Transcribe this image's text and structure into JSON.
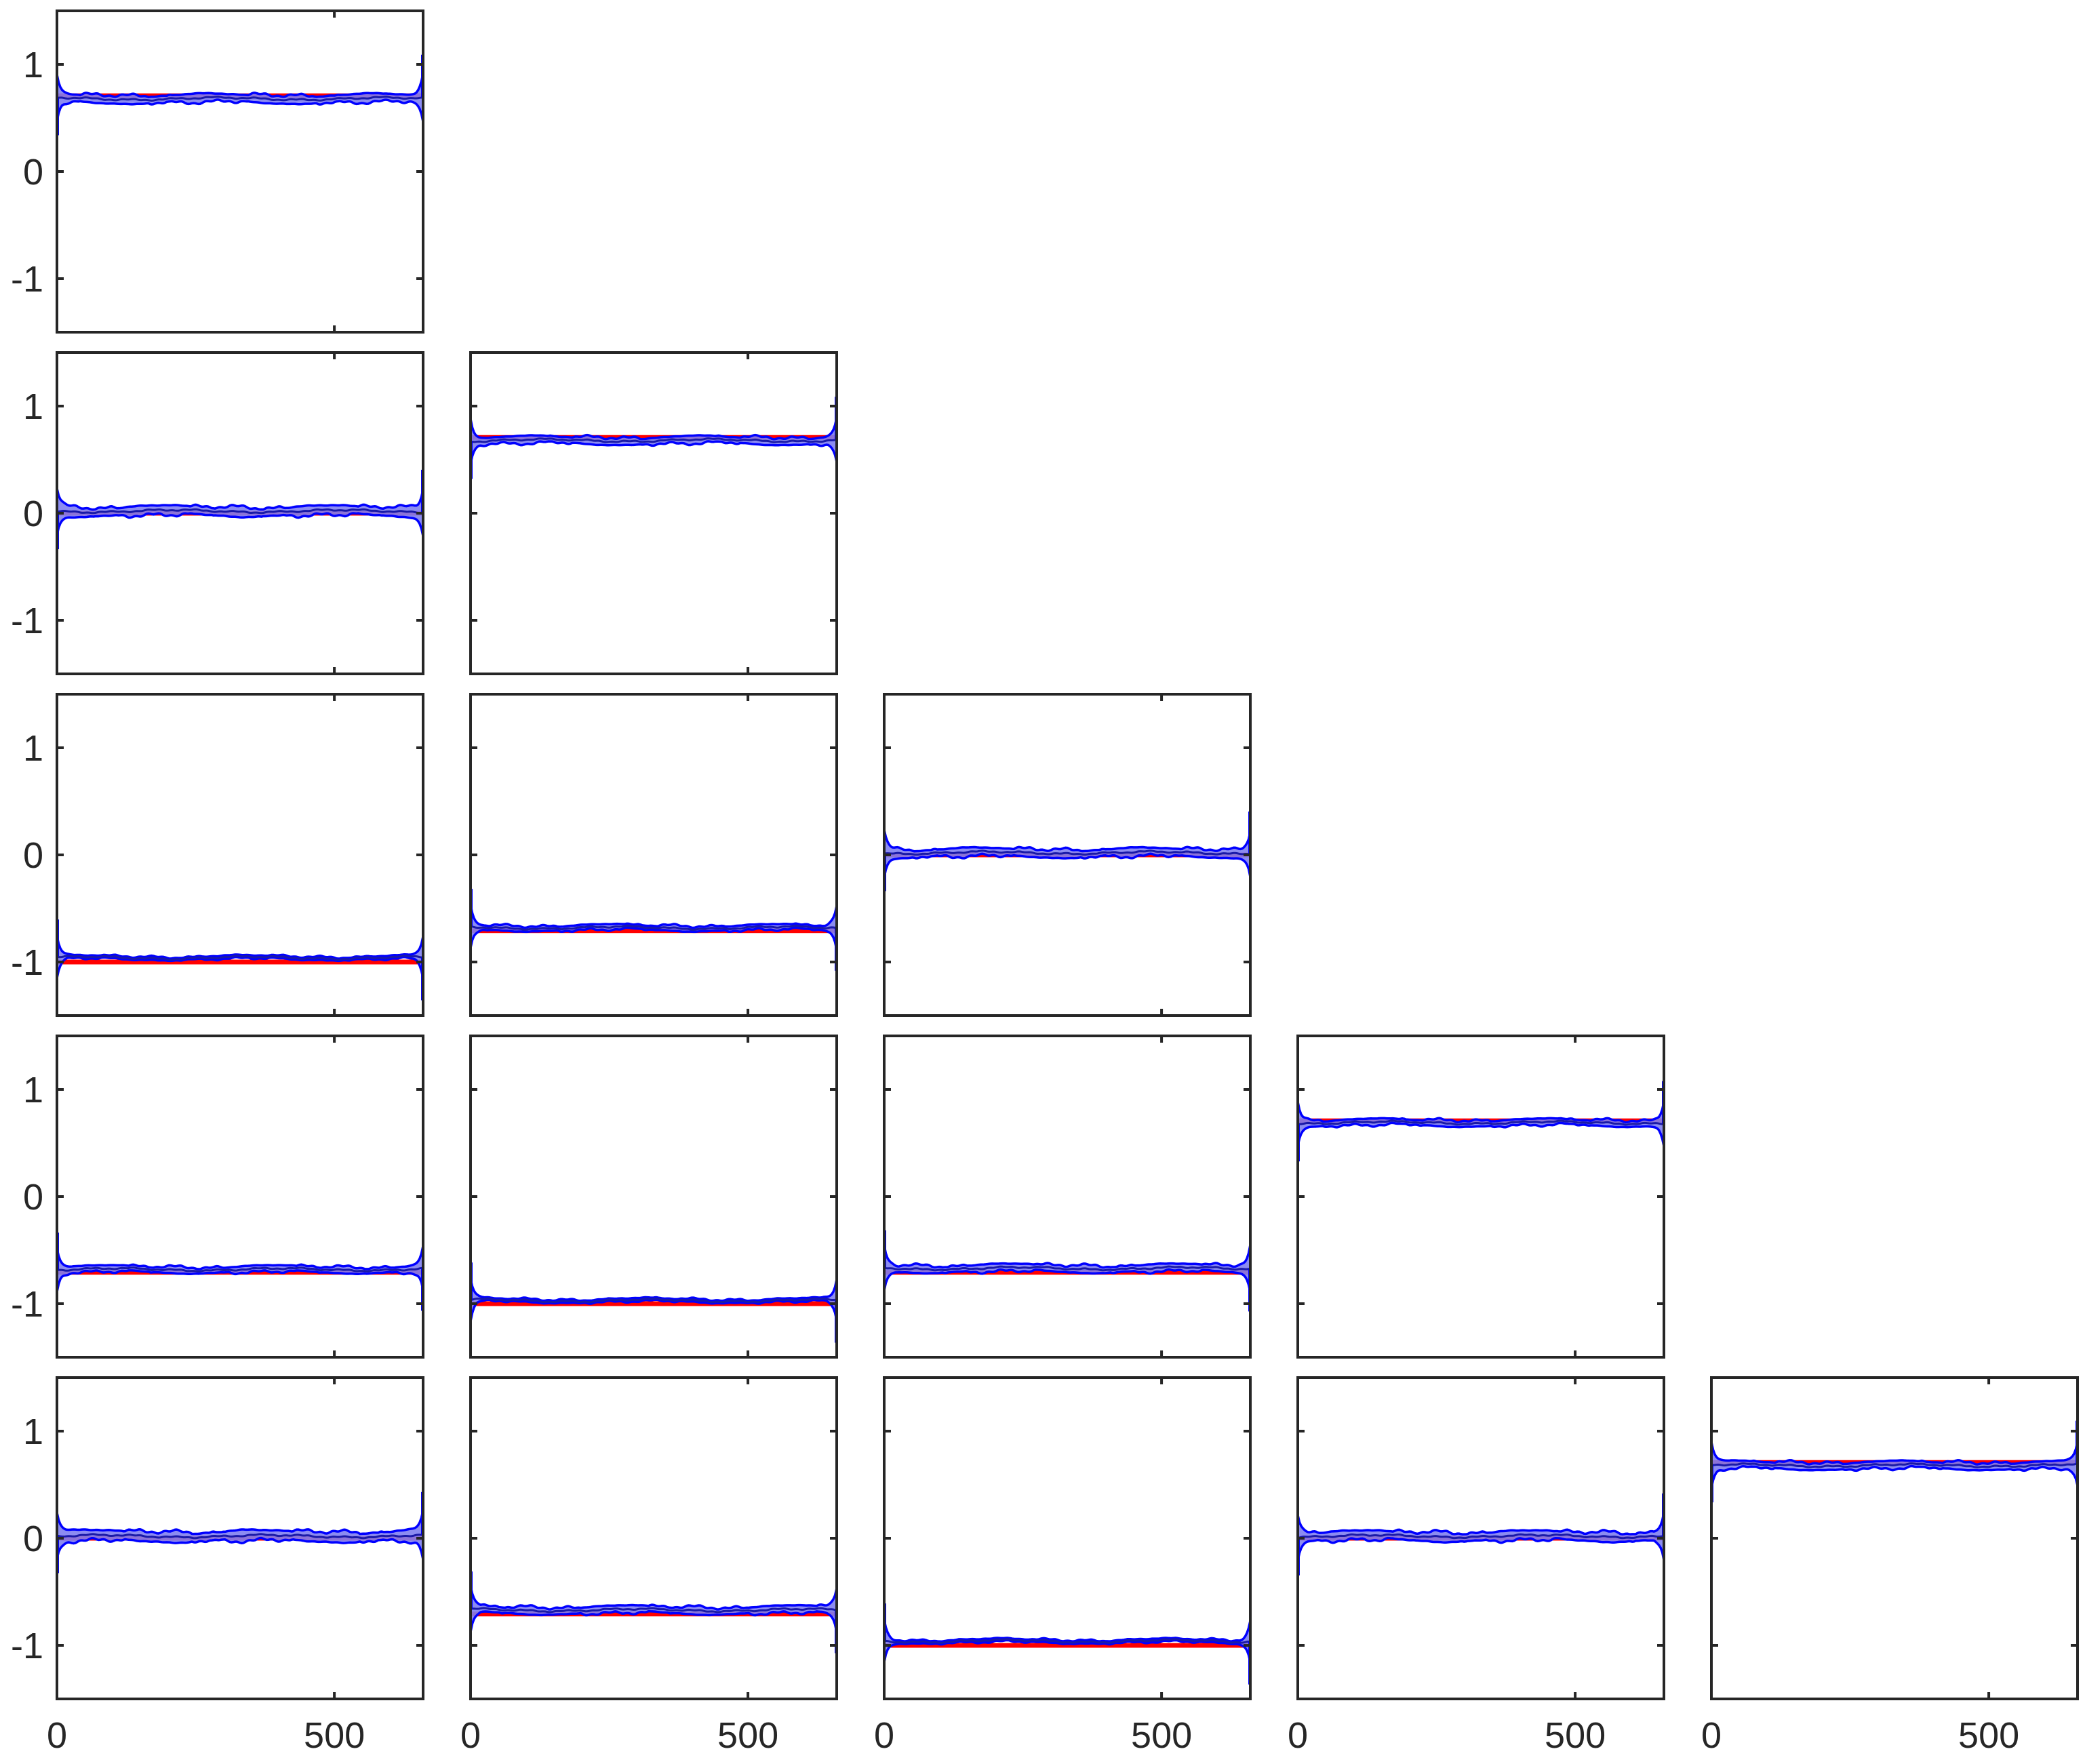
{
  "chart_data": {
    "type": "line",
    "layout": "lower-triangular grid, 5 rows × 5 columns",
    "xlim": [
      0,
      660
    ],
    "ylim": [
      -1.5,
      1.5
    ],
    "x_ticks": [
      0,
      500
    ],
    "y_ticks": [
      1,
      0,
      -1
    ],
    "x_tick_labels": [
      "0",
      "500"
    ],
    "y_tick_labels": [
      "1",
      "0",
      "-1"
    ],
    "grid": false,
    "colors": {
      "reference_line": "#ff0000",
      "band_fill": "#7f7ff0",
      "band_edge": "#0000ff",
      "mean_line": "#1a1aa8",
      "axes": "#262626"
    },
    "panels": [
      {
        "row": 1,
        "col": 1,
        "reference": 0.707,
        "mean": 0.68,
        "band_width": 0.08
      },
      {
        "row": 2,
        "col": 1,
        "reference": 0.0,
        "mean": 0.02,
        "band_width": 0.09
      },
      {
        "row": 2,
        "col": 2,
        "reference": 0.707,
        "mean": 0.68,
        "band_width": 0.07
      },
      {
        "row": 3,
        "col": 1,
        "reference": -1.0,
        "mean": -0.96,
        "band_width": 0.03
      },
      {
        "row": 3,
        "col": 2,
        "reference": -0.707,
        "mean": -0.68,
        "band_width": 0.05
      },
      {
        "row": 3,
        "col": 3,
        "reference": 0.0,
        "mean": 0.02,
        "band_width": 0.08
      },
      {
        "row": 4,
        "col": 1,
        "reference": -0.707,
        "mean": -0.68,
        "band_width": 0.06
      },
      {
        "row": 4,
        "col": 2,
        "reference": -1.0,
        "mean": -0.97,
        "band_width": 0.03
      },
      {
        "row": 4,
        "col": 3,
        "reference": -0.707,
        "mean": -0.67,
        "band_width": 0.07
      },
      {
        "row": 4,
        "col": 4,
        "reference": 0.707,
        "mean": 0.69,
        "band_width": 0.06
      },
      {
        "row": 5,
        "col": 1,
        "reference": 0.0,
        "mean": 0.02,
        "band_width": 0.1
      },
      {
        "row": 5,
        "col": 2,
        "reference": -0.707,
        "mean": -0.67,
        "band_width": 0.07
      },
      {
        "row": 5,
        "col": 3,
        "reference": -1.0,
        "mean": -0.96,
        "band_width": 0.03
      },
      {
        "row": 5,
        "col": 4,
        "reference": 0.0,
        "mean": 0.02,
        "band_width": 0.09
      },
      {
        "row": 5,
        "col": 5,
        "reference": 0.707,
        "mean": 0.68,
        "band_width": 0.07
      }
    ]
  }
}
